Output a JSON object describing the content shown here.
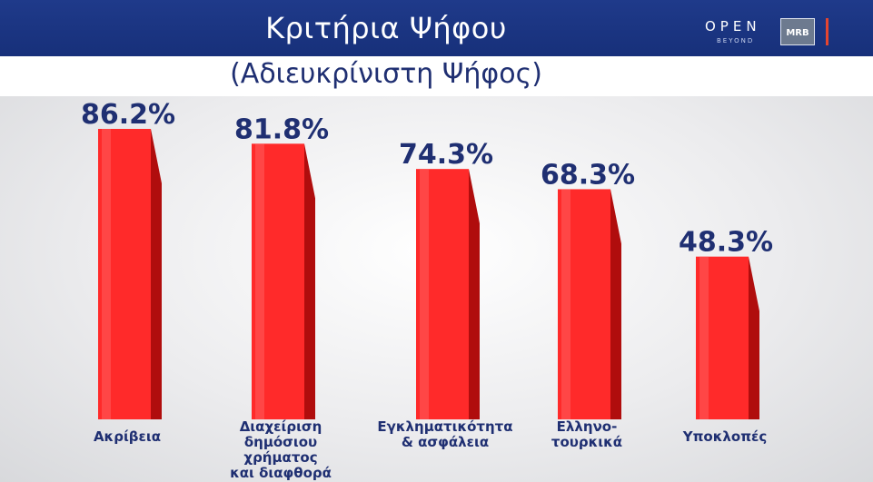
{
  "header": {
    "title": "Κριτήρια Ψήφου",
    "subtitle": "(Αδιευκρίνιστη Ψήφος)",
    "logo_open": "OPEN",
    "logo_beyond": "BEYOND",
    "logo_mrb": "MRB"
  },
  "colors": {
    "header_bg": "#1f3a8a",
    "bar": "#ff2a2a",
    "bar_side": "#b00d0d",
    "label": "#1f2f72",
    "accent": "#e4452f"
  },
  "chart_data": {
    "type": "bar",
    "title": "Κριτήρια Ψήφου",
    "subtitle": "(Αδιευκρίνιστη Ψήφος)",
    "categories": [
      "Ακρίβεια",
      "Διαχείριση\nδημόσιου χρήματος\nκαι διαφθορά",
      "Εγκληματικότητα\n& ασφάλεια",
      "Ελληνο-\nτουρκικά",
      "Υποκλοπές"
    ],
    "values": [
      86.2,
      81.8,
      74.3,
      68.3,
      48.3
    ],
    "value_labels": [
      "86.2%",
      "81.8%",
      "74.3%",
      "68.3%",
      "48.3%"
    ],
    "unit": "%",
    "ylim": [
      0,
      86.2
    ],
    "grid": false,
    "legend": "none"
  }
}
